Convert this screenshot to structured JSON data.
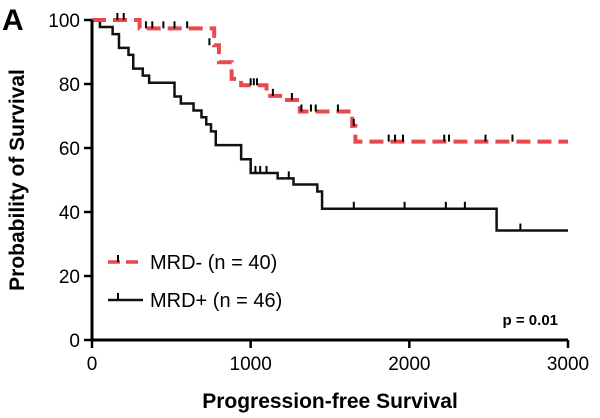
{
  "panel_label": "A",
  "chart_data": {
    "type": "line",
    "subtype": "kaplan-meier",
    "xlabel": "Progression-free Survival",
    "ylabel": "Probability of Survival",
    "xlim": [
      0,
      3000
    ],
    "ylim": [
      0,
      100
    ],
    "x_ticks": [
      "0",
      "1000",
      "2000",
      "3000"
    ],
    "x_tick_values": [
      0,
      1000,
      2000,
      3000
    ],
    "y_ticks": [
      "0",
      "20",
      "40",
      "60",
      "80",
      "100"
    ],
    "y_tick_values": [
      0,
      20,
      40,
      60,
      80,
      100
    ],
    "grid": false,
    "legend_position": "bottom-left",
    "annotation": "p = 0.01",
    "series": [
      {
        "name": "MRD- (n = 40)",
        "color": "#e8494e",
        "dash": true,
        "steps": [
          [
            0,
            100
          ],
          [
            300,
            97.4
          ],
          [
            770,
            92.1
          ],
          [
            800,
            86.8
          ],
          [
            880,
            81.6
          ],
          [
            940,
            79.6
          ],
          [
            1100,
            76.3
          ],
          [
            1200,
            75.0
          ],
          [
            1310,
            71.4
          ],
          [
            1640,
            66.9
          ],
          [
            1660,
            62.0
          ],
          [
            3000,
            62.0
          ]
        ],
        "censors": [
          [
            160,
            100
          ],
          [
            200,
            100
          ],
          [
            340,
            97.4
          ],
          [
            380,
            97.4
          ],
          [
            450,
            97.4
          ],
          [
            520,
            97.4
          ],
          [
            600,
            97.4
          ],
          [
            740,
            92.1
          ],
          [
            1000,
            79.6
          ],
          [
            1020,
            79.6
          ],
          [
            1040,
            79.6
          ],
          [
            1140,
            76.3
          ],
          [
            1260,
            75.0
          ],
          [
            1320,
            71.4
          ],
          [
            1380,
            71.4
          ],
          [
            1410,
            71.4
          ],
          [
            1550,
            71.4
          ],
          [
            1650,
            66.9
          ],
          [
            1870,
            62.0
          ],
          [
            1910,
            62.0
          ],
          [
            1960,
            62.0
          ],
          [
            2220,
            62.0
          ],
          [
            2250,
            62.0
          ],
          [
            2480,
            62.0
          ],
          [
            2650,
            62.0
          ]
        ]
      },
      {
        "name": "MRD+ (n = 46)",
        "color": "#111111",
        "dash": false,
        "steps": [
          [
            0,
            100
          ],
          [
            50,
            97.8
          ],
          [
            130,
            95.6
          ],
          [
            170,
            91.3
          ],
          [
            230,
            89.1
          ],
          [
            260,
            84.8
          ],
          [
            320,
            82.6
          ],
          [
            360,
            80.4
          ],
          [
            520,
            76.1
          ],
          [
            560,
            73.9
          ],
          [
            640,
            71.7
          ],
          [
            690,
            69.6
          ],
          [
            720,
            67.4
          ],
          [
            750,
            65.2
          ],
          [
            780,
            60.9
          ],
          [
            940,
            56.5
          ],
          [
            1000,
            52.2
          ],
          [
            1170,
            50.5
          ],
          [
            1270,
            48.6
          ],
          [
            1420,
            46.4
          ],
          [
            1450,
            41.0
          ],
          [
            2540,
            41.0
          ],
          [
            2550,
            34.2
          ],
          [
            3000,
            34.2
          ]
        ],
        "censors": [
          [
            1030,
            52.2
          ],
          [
            1060,
            52.2
          ],
          [
            1100,
            52.2
          ],
          [
            1240,
            50.5
          ],
          [
            1650,
            41.0
          ],
          [
            1970,
            41.0
          ],
          [
            2230,
            41.0
          ],
          [
            2350,
            41.0
          ],
          [
            2700,
            34.2
          ]
        ]
      }
    ]
  }
}
